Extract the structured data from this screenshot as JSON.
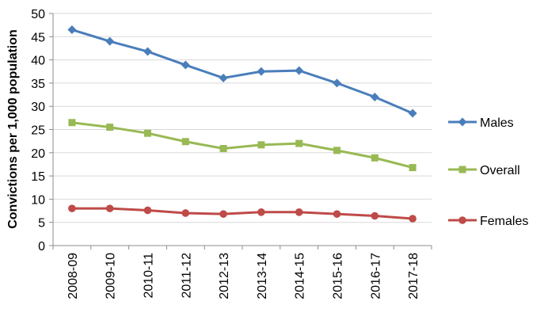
{
  "chart_data": {
    "type": "line",
    "title": "",
    "xlabel": "",
    "ylabel": "Convictions per 1,000 population",
    "ylim": [
      0,
      50
    ],
    "yticks": [
      0,
      5,
      10,
      15,
      20,
      25,
      30,
      35,
      40,
      45,
      50
    ],
    "grid": "horizontal",
    "legend_position": "right",
    "categories": [
      "2008-09",
      "2009-10",
      "2010-11",
      "2011-12",
      "2012-13",
      "2013-14",
      "2014-15",
      "2015-16",
      "2016-17",
      "2017-18"
    ],
    "series": [
      {
        "name": "Males",
        "marker": "diamond",
        "color": "#4a7ebb",
        "values": [
          46.5,
          44.0,
          41.8,
          38.9,
          36.1,
          37.5,
          37.7,
          35.0,
          32.0,
          28.5
        ]
      },
      {
        "name": "Overall",
        "marker": "square",
        "color": "#98b954",
        "values": [
          26.5,
          25.5,
          24.2,
          22.4,
          20.9,
          21.7,
          22.0,
          20.5,
          18.9,
          16.8
        ]
      },
      {
        "name": "Females",
        "marker": "circle",
        "color": "#be4b48",
        "values": [
          8.0,
          8.0,
          7.6,
          7.0,
          6.8,
          7.2,
          7.2,
          6.8,
          6.4,
          5.8
        ]
      }
    ]
  }
}
